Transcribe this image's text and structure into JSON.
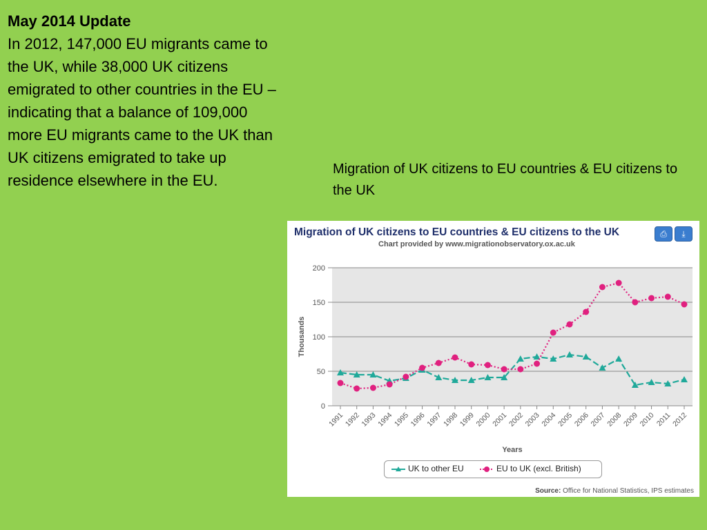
{
  "text": {
    "heading": "May 2014 Update",
    "body": "In 2012, 147,000 EU migrants came to the UK, while 38,000 UK citizens emigrated to other countries in the EU – indicating that a balance of 109,000 more EU migrants came to the UK than UK citizens emigrated to take up residence elsewhere in the EU.",
    "caption": "Migration of UK citizens to EU countries & EU citizens to the UK"
  },
  "chart_toolbar": {
    "print_icon": "print-icon",
    "download_icon": "download-icon"
  },
  "chart_data": {
    "type": "line",
    "title": "Migration of UK citizens to EU countries & EU citizens to the UK",
    "subtitle": "Chart provided by www.migrationobservatory.ox.ac.uk",
    "xlabel": "Years",
    "ylabel": "Thousands",
    "ylim": [
      0,
      200
    ],
    "yticks": [
      0,
      50,
      100,
      150,
      200
    ],
    "grid": true,
    "legend_position": "bottom",
    "categories": [
      "1991",
      "1992",
      "1993",
      "1994",
      "1995",
      "1996",
      "1997",
      "1998",
      "1999",
      "2000",
      "2001",
      "2002",
      "2003",
      "2004",
      "2005",
      "2006",
      "2007",
      "2008",
      "2009",
      "2010",
      "2011",
      "2012"
    ],
    "series": [
      {
        "name": "UK to other EU",
        "color": "#20a99a",
        "style": "dashed",
        "marker": "triangle",
        "values": [
          48,
          45,
          45,
          36,
          40,
          52,
          41,
          37,
          37,
          41,
          41,
          68,
          71,
          68,
          74,
          71,
          55,
          68,
          30,
          34,
          32,
          38
        ]
      },
      {
        "name": "EU to UK (excl. British)",
        "color": "#e0207f",
        "style": "dotted",
        "marker": "circle",
        "values": [
          33,
          25,
          26,
          31,
          42,
          55,
          62,
          70,
          60,
          59,
          53,
          53,
          61,
          106,
          118,
          136,
          172,
          178,
          150,
          156,
          158,
          147
        ]
      }
    ],
    "source_label": "Source:",
    "source_text": "Office for National Statistics, IPS estimates"
  }
}
